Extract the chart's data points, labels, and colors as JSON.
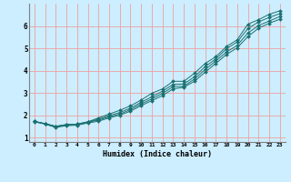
{
  "xlabel": "Humidex (Indice chaleur)",
  "bg_color": "#cceeff",
  "grid_color": "#f0a0a0",
  "line_color": "#1a7070",
  "xlim": [
    -0.5,
    23.5
  ],
  "ylim": [
    0.8,
    7.0
  ],
  "xticks": [
    0,
    1,
    2,
    3,
    4,
    5,
    6,
    7,
    8,
    9,
    10,
    11,
    12,
    13,
    14,
    15,
    16,
    17,
    18,
    19,
    20,
    21,
    22,
    23
  ],
  "yticks": [
    1,
    2,
    3,
    4,
    5,
    6
  ],
  "x": [
    0,
    1,
    2,
    3,
    4,
    5,
    6,
    7,
    8,
    9,
    10,
    11,
    12,
    13,
    14,
    15,
    16,
    17,
    18,
    19,
    20,
    21,
    22,
    23
  ],
  "line1": [
    1.72,
    1.62,
    1.5,
    1.58,
    1.6,
    1.7,
    1.88,
    2.05,
    2.22,
    2.42,
    2.68,
    2.98,
    3.18,
    3.52,
    3.52,
    3.88,
    4.32,
    4.62,
    5.08,
    5.38,
    6.08,
    6.28,
    6.52,
    6.68
  ],
  "line2": [
    1.72,
    1.62,
    1.5,
    1.58,
    1.6,
    1.7,
    1.82,
    1.98,
    2.12,
    2.32,
    2.58,
    2.82,
    3.08,
    3.38,
    3.4,
    3.72,
    4.18,
    4.52,
    4.98,
    5.28,
    5.88,
    6.18,
    6.38,
    6.55
  ],
  "line3": [
    1.72,
    1.62,
    1.48,
    1.56,
    1.58,
    1.68,
    1.78,
    1.93,
    2.05,
    2.25,
    2.5,
    2.73,
    2.98,
    3.28,
    3.3,
    3.62,
    4.05,
    4.43,
    4.83,
    5.13,
    5.68,
    6.02,
    6.22,
    6.42
  ],
  "line4": [
    1.7,
    1.6,
    1.45,
    1.53,
    1.55,
    1.65,
    1.73,
    1.88,
    2.0,
    2.18,
    2.43,
    2.65,
    2.88,
    3.18,
    3.25,
    3.52,
    3.93,
    4.32,
    4.72,
    5.02,
    5.52,
    5.9,
    6.12,
    6.3
  ]
}
